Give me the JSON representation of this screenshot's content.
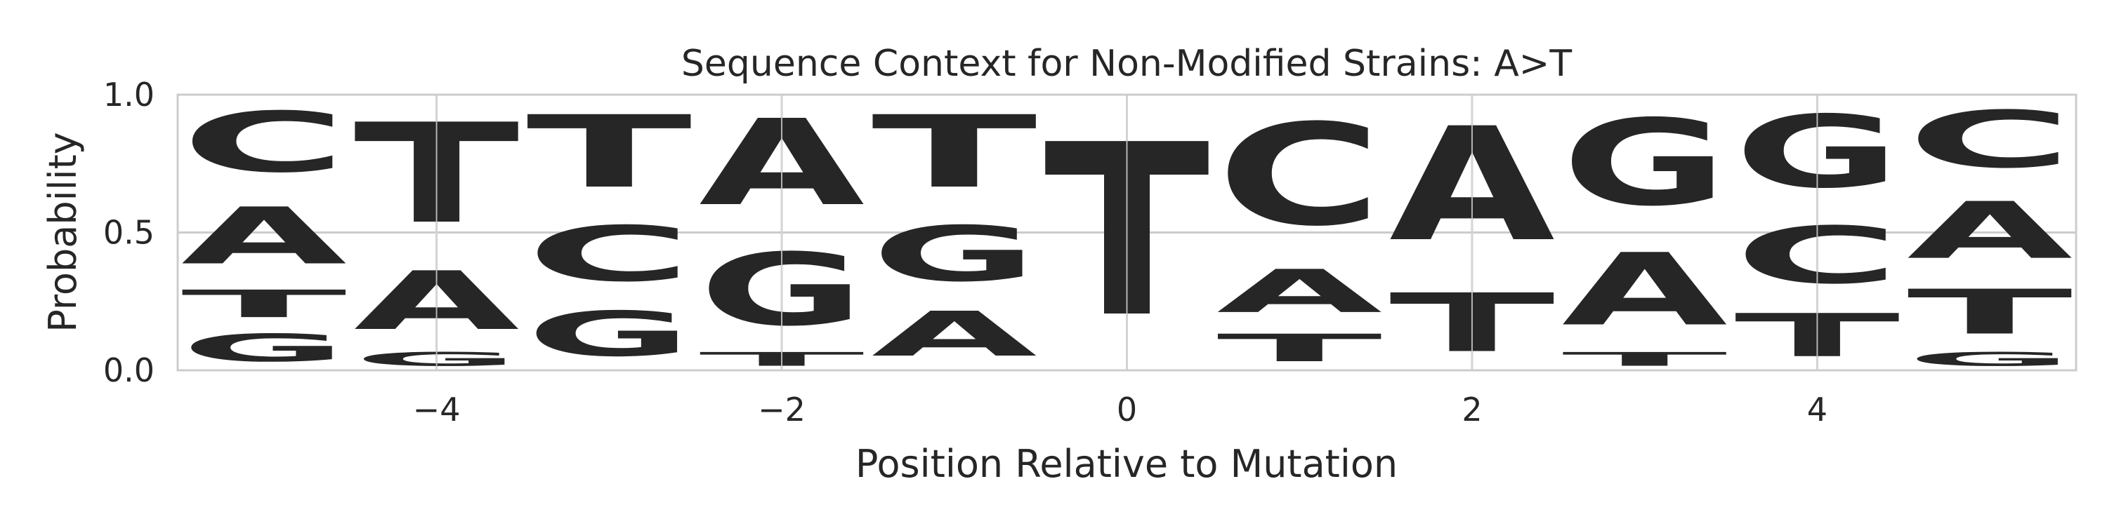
{
  "chart_data": {
    "type": "sequence-logo",
    "title": "Sequence Context for Non-Modified Strains: A>T",
    "xlabel": "Position Relative to Mutation",
    "ylabel": "Probability",
    "xlim": [
      -5.5,
      5.5
    ],
    "ylim": [
      0,
      1
    ],
    "xticks": [
      -4,
      -2,
      0,
      2,
      4
    ],
    "xtick_labels": [
      "−4",
      "−2",
      "0",
      "2",
      "4"
    ],
    "yticks": [
      0,
      0.5,
      1
    ],
    "ytick_labels": [
      "0.0",
      "0.5",
      "1.0"
    ],
    "grid": true,
    "letter_colors": {
      "A": "#008000",
      "C": "#0000ff",
      "G": "#ffa500",
      "T": "#ff0000"
    },
    "positions": [
      {
        "x": -5,
        "stack": [
          {
            "base": "G",
            "p": 0.16
          },
          {
            "base": "T",
            "p": 0.16
          },
          {
            "base": "A",
            "p": 0.33
          },
          {
            "base": "C",
            "p": 0.35
          }
        ]
      },
      {
        "x": -4,
        "stack": [
          {
            "base": "G",
            "p": 0.08
          },
          {
            "base": "A",
            "p": 0.34
          },
          {
            "base": "T",
            "p": 0.58
          }
        ]
      },
      {
        "x": -3,
        "stack": [
          {
            "base": "G",
            "p": 0.26
          },
          {
            "base": "C",
            "p": 0.32
          },
          {
            "base": "T",
            "p": 0.42
          }
        ]
      },
      {
        "x": -2,
        "stack": [
          {
            "base": "T",
            "p": 0.08
          },
          {
            "base": "G",
            "p": 0.42
          },
          {
            "base": "A",
            "p": 0.5
          }
        ]
      },
      {
        "x": -1,
        "stack": [
          {
            "base": "A",
            "p": 0.26
          },
          {
            "base": "G",
            "p": 0.32
          },
          {
            "base": "T",
            "p": 0.42
          }
        ]
      },
      {
        "x": 0,
        "stack": [
          {
            "base": "T",
            "p": 1.0
          }
        ]
      },
      {
        "x": 1,
        "stack": [
          {
            "base": "T",
            "p": 0.16
          },
          {
            "base": "A",
            "p": 0.25
          },
          {
            "base": "C",
            "p": 0.59
          }
        ]
      },
      {
        "x": 2,
        "stack": [
          {
            "base": "T",
            "p": 0.34
          },
          {
            "base": "A",
            "p": 0.66
          }
        ]
      },
      {
        "x": 3,
        "stack": [
          {
            "base": "T",
            "p": 0.08
          },
          {
            "base": "A",
            "p": 0.42
          },
          {
            "base": "G",
            "p": 0.5
          }
        ]
      },
      {
        "x": 4,
        "stack": [
          {
            "base": "T",
            "p": 0.25
          },
          {
            "base": "C",
            "p": 0.33
          },
          {
            "base": "G",
            "p": 0.42
          }
        ]
      },
      {
        "x": 5,
        "stack": [
          {
            "base": "G",
            "p": 0.08
          },
          {
            "base": "T",
            "p": 0.26
          },
          {
            "base": "A",
            "p": 0.33
          },
          {
            "base": "C",
            "p": 0.33
          }
        ]
      }
    ]
  }
}
